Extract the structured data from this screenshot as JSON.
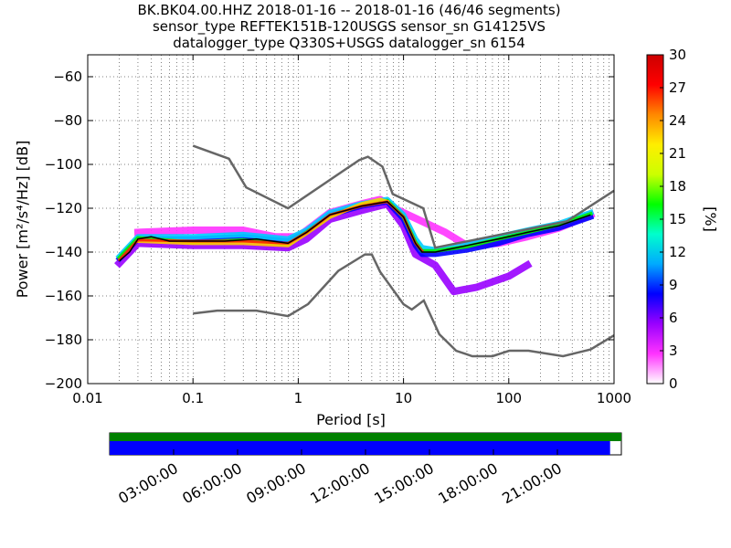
{
  "chart_data": {
    "type": "heatmap",
    "title_lines": [
      "BK.BK04.00.HHZ   2018-01-16 -- 2018-01-16  (46/46 segments)",
      "sensor_type REFTEK151B-120USGS sensor_sn G14125VS",
      "datalogger_type Q330S+USGS datalogger_sn 6154"
    ],
    "xlabel": "Period [s]",
    "ylabel": "Power [m²/s⁴/Hz] [dB]",
    "x_scale": "log",
    "xlim": [
      0.01,
      1000
    ],
    "ylim": [
      -200,
      -50
    ],
    "x_ticks": [
      0.01,
      0.1,
      1,
      10,
      100,
      1000
    ],
    "x_tick_labels": [
      "0.01",
      "0.1",
      "1",
      "10",
      "100",
      "1000"
    ],
    "y_ticks": [
      -200,
      -180,
      -160,
      -140,
      -120,
      -100,
      -80,
      -60
    ],
    "y_tick_labels": [
      "−200",
      "−180",
      "−160",
      "−140",
      "−120",
      "−100",
      "−80",
      "−60"
    ],
    "grid": "dotted, minor x gridlines",
    "colorbar": {
      "label": "[%]",
      "range": [
        0,
        30
      ],
      "ticks": [
        0,
        3,
        6,
        9,
        12,
        15,
        18,
        21,
        24,
        27,
        30
      ],
      "tick_labels": [
        "0",
        "3",
        "6",
        "9",
        "12",
        "15",
        "18",
        "21",
        "24",
        "27",
        "30"
      ],
      "colormap": [
        "#ffffff",
        "#ff33ff",
        "#9900ff",
        "#0000ff",
        "#00aaff",
        "#00ffcc",
        "#00ff00",
        "#ccff00",
        "#ffee00",
        "#ff8800",
        "#ff0000",
        "#cc0000"
      ]
    },
    "noise_models": [
      {
        "kind": "high",
        "color": "#666666",
        "points": [
          [
            0.1,
            -91.5
          ],
          [
            0.22,
            -97.4
          ],
          [
            0.32,
            -110.5
          ],
          [
            0.8,
            -120
          ],
          [
            3.8,
            -98
          ],
          [
            4.6,
            -96.5
          ],
          [
            6.3,
            -101
          ],
          [
            7.9,
            -113.5
          ],
          [
            15.4,
            -120
          ],
          [
            20,
            -138
          ],
          [
            354.8,
            -126
          ],
          [
            1000,
            -112
          ]
        ]
      },
      {
        "kind": "low",
        "color": "#666666",
        "points": [
          [
            0.1,
            -168
          ],
          [
            0.17,
            -166.7
          ],
          [
            0.4,
            -166.7
          ],
          [
            0.8,
            -169.2
          ],
          [
            1.24,
            -163.7
          ],
          [
            2.4,
            -148.6
          ],
          [
            4.3,
            -141.1
          ],
          [
            5,
            -141.1
          ],
          [
            6,
            -149
          ],
          [
            10,
            -163.8
          ],
          [
            12,
            -166.2
          ],
          [
            15.6,
            -162.1
          ],
          [
            21.9,
            -177.5
          ],
          [
            31.6,
            -185
          ],
          [
            45,
            -187.5
          ],
          [
            70,
            -187.5
          ],
          [
            101,
            -185
          ],
          [
            154,
            -185
          ],
          [
            328,
            -187.5
          ],
          [
            600,
            -184.4
          ],
          [
            1000,
            -178
          ]
        ]
      }
    ],
    "series": [
      {
        "kind": "mean",
        "color": "#000000",
        "points": [
          [
            0.02,
            -144
          ],
          [
            0.025,
            -140
          ],
          [
            0.03,
            -134
          ],
          [
            0.04,
            -133
          ],
          [
            0.06,
            -135
          ],
          [
            0.1,
            -135
          ],
          [
            0.2,
            -135
          ],
          [
            0.4,
            -134
          ],
          [
            0.8,
            -136
          ],
          [
            1.2,
            -131
          ],
          [
            2,
            -123
          ],
          [
            4,
            -119
          ],
          [
            7,
            -117
          ],
          [
            10,
            -124
          ],
          [
            13,
            -136
          ],
          [
            15,
            -140
          ],
          [
            20,
            -140
          ],
          [
            40,
            -137
          ],
          [
            80,
            -134
          ],
          [
            150,
            -131
          ],
          [
            300,
            -128
          ],
          [
            600,
            -123
          ]
        ]
      }
    ],
    "bands": [
      {
        "color": "#ff33ff",
        "center": [
          [
            0.03,
            -131
          ],
          [
            0.1,
            -130
          ],
          [
            0.3,
            -130
          ],
          [
            0.6,
            -133
          ],
          [
            1,
            -133
          ],
          [
            2,
            -122
          ],
          [
            4,
            -118
          ],
          [
            6,
            -116
          ],
          [
            9,
            -121
          ],
          [
            15,
            -126
          ],
          [
            25,
            -131
          ],
          [
            40,
            -137
          ],
          [
            80,
            -136
          ],
          [
            150,
            -133
          ],
          [
            300,
            -129
          ],
          [
            600,
            -123
          ]
        ],
        "width": 4
      },
      {
        "color": "#9900ff",
        "center": [
          [
            0.02,
            -145
          ],
          [
            0.03,
            -136
          ],
          [
            0.1,
            -137
          ],
          [
            0.3,
            -137
          ],
          [
            0.8,
            -138
          ],
          [
            1.2,
            -134
          ],
          [
            2,
            -125
          ],
          [
            4,
            -121
          ],
          [
            7,
            -118
          ],
          [
            10,
            -128
          ],
          [
            13,
            -141
          ],
          [
            20,
            -146
          ],
          [
            30,
            -158
          ],
          [
            50,
            -156
          ],
          [
            100,
            -151
          ],
          [
            150,
            -146
          ]
        ],
        "width": 4
      },
      {
        "color": "#0000ff",
        "center": [
          [
            0.02,
            -143
          ],
          [
            0.03,
            -134
          ],
          [
            0.1,
            -134
          ],
          [
            0.3,
            -133
          ],
          [
            0.8,
            -135
          ],
          [
            1.2,
            -131
          ],
          [
            2,
            -123
          ],
          [
            4,
            -119
          ],
          [
            7,
            -117
          ],
          [
            10,
            -125
          ],
          [
            13,
            -137
          ],
          [
            15,
            -141
          ],
          [
            20,
            -141
          ],
          [
            40,
            -139
          ],
          [
            80,
            -136
          ],
          [
            150,
            -132
          ],
          [
            300,
            -129
          ],
          [
            600,
            -124
          ]
        ],
        "width": 3
      },
      {
        "color": "#00ccff",
        "center": [
          [
            0.02,
            -142
          ],
          [
            0.03,
            -133
          ],
          [
            0.1,
            -133
          ],
          [
            0.3,
            -132
          ],
          [
            0.8,
            -134
          ],
          [
            1.2,
            -130
          ],
          [
            2,
            -122
          ],
          [
            4,
            -118
          ],
          [
            7,
            -116
          ],
          [
            10,
            -123
          ],
          [
            13,
            -134
          ],
          [
            15,
            -138
          ],
          [
            20,
            -139
          ],
          [
            40,
            -136
          ],
          [
            80,
            -133
          ],
          [
            150,
            -130
          ],
          [
            300,
            -127
          ],
          [
            600,
            -122
          ]
        ],
        "width": 3
      },
      {
        "color": "#00ee00",
        "center": [
          [
            0.02,
            -142.5
          ],
          [
            0.03,
            -133.5
          ],
          [
            0.1,
            -135.5
          ],
          [
            0.3,
            -134.5
          ],
          [
            0.8,
            -136.5
          ],
          [
            1.2,
            -131
          ],
          [
            2,
            -123.5
          ],
          [
            4,
            -118.5
          ],
          [
            7,
            -116.5
          ],
          [
            10,
            -124
          ],
          [
            13,
            -135.5
          ],
          [
            15,
            -139.5
          ],
          [
            20,
            -139.5
          ],
          [
            40,
            -137.5
          ],
          [
            80,
            -134
          ],
          [
            150,
            -131
          ],
          [
            300,
            -127.5
          ],
          [
            600,
            -122.5
          ]
        ],
        "width": 2
      },
      {
        "color": "#ffcc00",
        "center": [
          [
            0.03,
            -135
          ],
          [
            0.1,
            -136
          ],
          [
            0.3,
            -136
          ],
          [
            0.8,
            -137
          ],
          [
            1.2,
            -131.5
          ],
          [
            2,
            -124
          ],
          [
            4,
            -118
          ],
          [
            6,
            -116
          ],
          [
            7,
            -117
          ]
        ],
        "width": 2
      },
      {
        "color": "#ff2200",
        "center": [
          [
            0.02,
            -143.5
          ],
          [
            0.03,
            -134.5
          ],
          [
            0.1,
            -135
          ],
          [
            0.3,
            -135
          ],
          [
            0.8,
            -136
          ],
          [
            1.2,
            -131
          ],
          [
            2,
            -123
          ],
          [
            4,
            -119
          ],
          [
            7,
            -117
          ],
          [
            10,
            -124
          ],
          [
            13,
            -136
          ],
          [
            15,
            -139.5
          ]
        ],
        "width": 1.5
      }
    ]
  },
  "timeline": {
    "tick_labels": [
      "03:00:00",
      "06:00:00",
      "09:00:00",
      "12:00:00",
      "15:00:00",
      "18:00:00",
      "21:00:00"
    ],
    "bars": [
      {
        "color": "#008000",
        "coverage": 1.0
      },
      {
        "color": "#0000ff",
        "coverage": 0.978
      }
    ]
  }
}
